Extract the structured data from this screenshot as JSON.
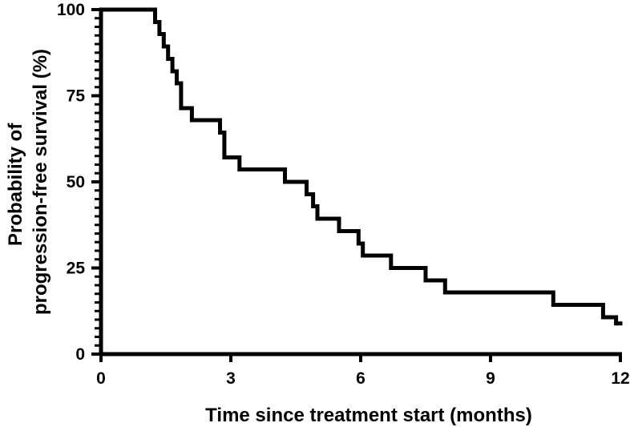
{
  "chart_data": {
    "type": "line",
    "step": true,
    "xlabel": "Time since treatment start (months)",
    "ylabel_lines": [
      "Probability of",
      "progression-free survival (%)"
    ],
    "xlim": [
      0,
      12
    ],
    "ylim": [
      0,
      100
    ],
    "x_ticks": [
      0,
      3,
      6,
      9,
      12
    ],
    "y_ticks": [
      0,
      25,
      50,
      75,
      100
    ],
    "y_minor_tick_interval": 2.5,
    "grid": false,
    "line_color": "#000000",
    "series": [
      {
        "x": [
          0,
          1.25,
          1.35,
          1.45,
          1.55,
          1.65,
          1.75,
          1.85,
          2.1,
          2.75,
          2.85,
          3.2,
          4.25,
          4.75,
          4.9,
          5.0,
          5.5,
          5.95,
          6.05,
          6.7,
          7.5,
          7.95,
          10.45,
          11.6,
          11.9,
          12.0
        ],
        "y": [
          100,
          96.4,
          92.9,
          89.3,
          85.7,
          82.1,
          78.6,
          71.4,
          67.9,
          64.3,
          57.1,
          53.6,
          50.0,
          46.4,
          42.9,
          39.3,
          35.7,
          32.1,
          28.6,
          25.0,
          21.4,
          17.9,
          14.3,
          10.7,
          8.9,
          8.9
        ]
      }
    ]
  }
}
